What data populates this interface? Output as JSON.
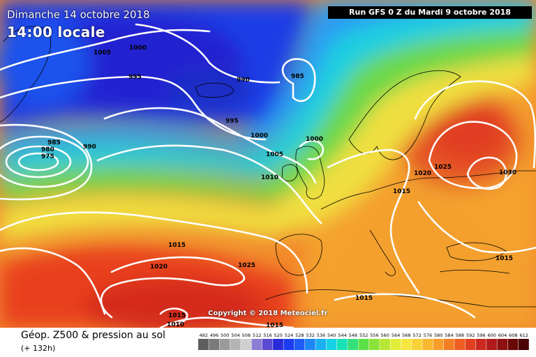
{
  "header": {
    "date_line": "Dimanche 14 octobre 2018",
    "time_line": "14:00 locale",
    "run_line": "Run GFS 0 Z du Mardi 9 octobre 2018"
  },
  "footer": {
    "title": "Géop. Z500 & pression au sol",
    "subtitle": "(+ 132h)",
    "copyright": "Copyright © 2018 Meteociel.fr"
  },
  "scale": {
    "values": [
      "492",
      "496",
      "500",
      "504",
      "508",
      "512",
      "516",
      "520",
      "524",
      "528",
      "532",
      "536",
      "540",
      "544",
      "548",
      "552",
      "556",
      "560",
      "564",
      "568",
      "572",
      "576",
      "580",
      "584",
      "588",
      "592",
      "596",
      "600",
      "604",
      "608",
      "612"
    ],
    "colors": [
      "#5e5e5e",
      "#7a7a7a",
      "#9a9a9a",
      "#b4b4b4",
      "#cfcfcf",
      "#8c7dd6",
      "#5a4bd0",
      "#2a2ad8",
      "#1c3cf0",
      "#1f5cf7",
      "#1f86f7",
      "#1ab0f2",
      "#17d2e6",
      "#1ae2b8",
      "#35e07a",
      "#5ce048",
      "#8be23a",
      "#b8e636",
      "#e2ec3a",
      "#f7e640",
      "#f9d23a",
      "#f9b832",
      "#f79d2c",
      "#f47e26",
      "#ee5e22",
      "#e24020",
      "#cc2a20",
      "#b01a1a",
      "#8e1010",
      "#6a0808",
      "#4a0404"
    ]
  },
  "isobar_labels": [
    {
      "id": "1005-greenland",
      "text": "1005"
    },
    {
      "id": "1000-north",
      "text": "1000"
    },
    {
      "id": "995-west",
      "text": "995"
    },
    {
      "id": "990-center",
      "text": "990"
    },
    {
      "id": "985-north",
      "text": "985"
    },
    {
      "id": "995-center",
      "text": "995"
    },
    {
      "id": "1000-center",
      "text": "1000"
    },
    {
      "id": "1000-scotland",
      "text": "1000"
    },
    {
      "id": "1005-ireland",
      "text": "1005"
    },
    {
      "id": "1010-ireland",
      "text": "1010"
    },
    {
      "id": "985-low",
      "text": "985"
    },
    {
      "id": "980-low",
      "text": "980"
    },
    {
      "id": "975-low",
      "text": "975"
    },
    {
      "id": "990-west",
      "text": "990"
    },
    {
      "id": "1015-atlantic",
      "text": "1015"
    },
    {
      "id": "1020-atlantic",
      "text": "1020"
    },
    {
      "id": "1025-atlantic",
      "text": "1025"
    },
    {
      "id": "1015-southwest",
      "text": "1015"
    },
    {
      "id": "1010-southwest",
      "text": "1010"
    },
    {
      "id": "1015-bottom",
      "text": "1015"
    },
    {
      "id": "1015-mediterranean",
      "text": "1015"
    },
    {
      "id": "1015-germany",
      "text": "1015"
    },
    {
      "id": "1020-poland",
      "text": "1020"
    },
    {
      "id": "1025-russia",
      "text": "1025"
    },
    {
      "id": "1030-russia",
      "text": "1030"
    },
    {
      "id": "1015-east",
      "text": "1015"
    }
  ]
}
